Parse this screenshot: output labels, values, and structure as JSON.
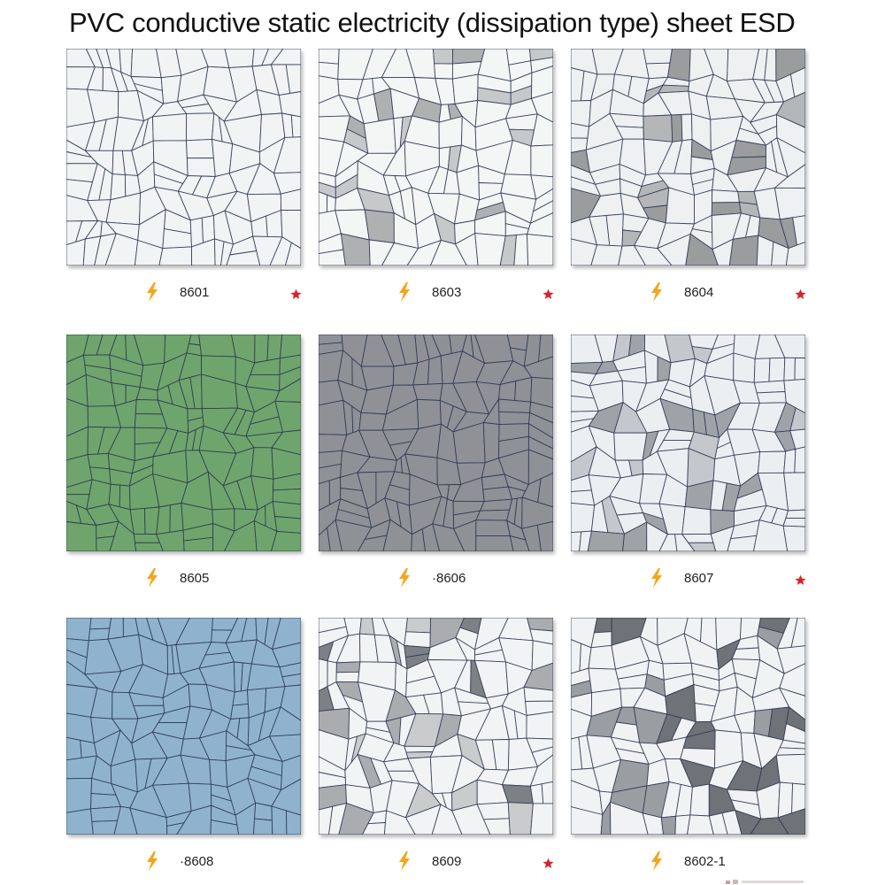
{
  "title": "PVC conductive static electricity (dissipation type) sheet ESD",
  "colors": {
    "star": "#d8232a",
    "bolt": "#f2a61c",
    "vein": "#2a3650"
  },
  "icons": {
    "bolt": "lightning-bolt-icon",
    "star": "star-icon"
  },
  "samples": [
    {
      "code": "8601",
      "starred": true,
      "base": "#f1f3f4",
      "patches": [],
      "patch_ratio": 0
    },
    {
      "code": "8603",
      "starred": true,
      "base": "#f4f5f5",
      "patches": [
        "#aeb0b2",
        "#c6c8ca"
      ],
      "patch_ratio": 0.18
    },
    {
      "code": "8604",
      "starred": true,
      "base": "#eef0f1",
      "patches": [
        "#9a9c9e",
        "#b4b6b8"
      ],
      "patch_ratio": 0.22
    },
    {
      "code": "8605",
      "starred": false,
      "base": "#6fa56c",
      "patches": [],
      "patch_ratio": 0
    },
    {
      "code": "·8606",
      "starred": false,
      "base": "#8f9196",
      "patches": [],
      "patch_ratio": 0
    },
    {
      "code": "8607",
      "starred": true,
      "base": "#eceff2",
      "patches": [
        "#c4c8cc",
        "#9ea3a8"
      ],
      "patch_ratio": 0.3
    },
    {
      "code": "·8608",
      "starred": false,
      "base": "#8fb3cf",
      "patches": [],
      "patch_ratio": 0
    },
    {
      "code": "8609",
      "starred": true,
      "base": "#f2f3f4",
      "patches": [
        "#7d8084",
        "#aaacb0",
        "#c9cbcd"
      ],
      "patch_ratio": 0.3
    },
    {
      "code": "8602-1",
      "starred": false,
      "base": "#f1f2f3",
      "patches": [
        "#6f7276",
        "#9a9da1"
      ],
      "patch_ratio": 0.2
    }
  ]
}
